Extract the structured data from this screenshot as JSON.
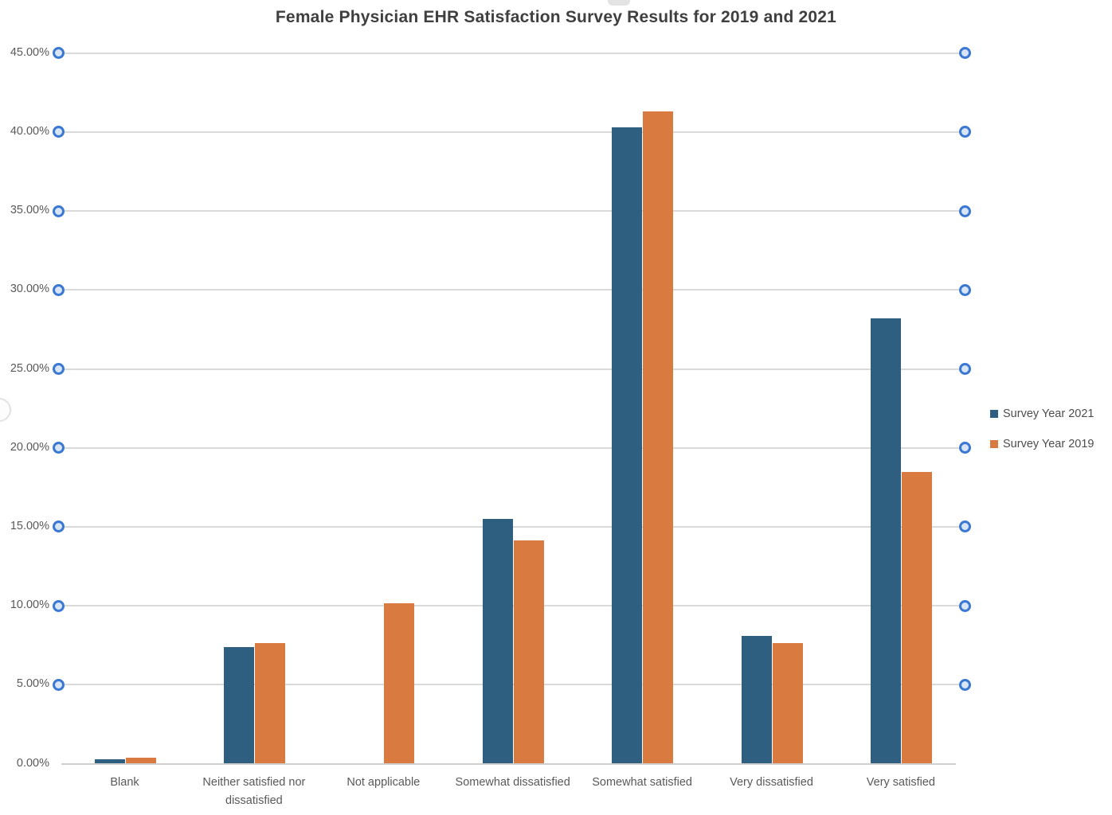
{
  "title": "Female Physician EHR Satisfaction Survey Results for 2019 and 2021",
  "colors": {
    "series_2021": "#2e5f80",
    "series_2019": "#d97b41",
    "gridline": "#dadada",
    "axis_line": "#cfcfcf",
    "handle_stroke": "#3a78d2",
    "handle_fill": "#d8e5f6",
    "tick_text": "#595959",
    "title_text": "#3f3f3f"
  },
  "legend": {
    "items": [
      {
        "label": "Survey Year 2021",
        "color": "#2e5f80"
      },
      {
        "label": "Survey Year 2019",
        "color": "#d97b41"
      }
    ]
  },
  "y_axis": {
    "tick_labels": [
      "0.00%",
      "5.00%",
      "10.00%",
      "15.00%",
      "20.00%",
      "25.00%",
      "30.00%",
      "35.00%",
      "40.00%",
      "45.00%"
    ],
    "min": 0,
    "max": 45,
    "step": 5
  },
  "chart_data": {
    "type": "bar",
    "title": "Female Physician EHR Satisfaction Survey Results for 2019 and 2021",
    "categories": [
      "Blank",
      "Neither satisfied nor dissatisfied",
      "Not applicable",
      "Somewhat dissatisfied",
      "Somewhat satisfied",
      "Very dissatisfied",
      "Very satisfied"
    ],
    "series": [
      {
        "name": "Survey Year 2021",
        "color": "#2e5f80",
        "values": [
          0.3,
          7.4,
          0.0,
          15.5,
          40.3,
          8.1,
          28.2
        ]
      },
      {
        "name": "Survey Year 2019",
        "color": "#d97b41",
        "values": [
          0.4,
          7.65,
          10.15,
          14.15,
          41.3,
          7.65,
          18.45
        ]
      }
    ],
    "xlabel": "",
    "ylabel": "",
    "ylim": [
      0,
      45
    ],
    "y_tick_format": "percent_2dp",
    "grid": true,
    "legend_position": "right"
  }
}
